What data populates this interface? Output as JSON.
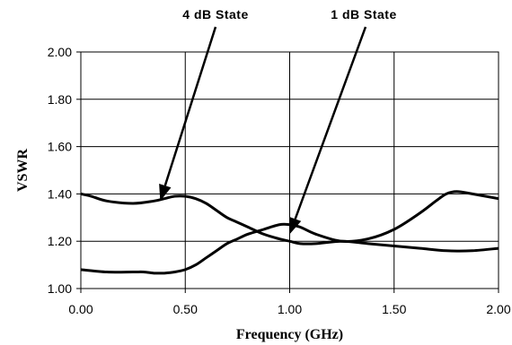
{
  "chart_data": {
    "type": "line",
    "title": "",
    "xlabel": "Frequency (GHz)",
    "ylabel": "VSWR",
    "xlim": [
      0,
      2
    ],
    "ylim": [
      1,
      2
    ],
    "x_ticks": [
      "0.00",
      "0.50",
      "1.00",
      "1.50",
      "2.00"
    ],
    "y_ticks": [
      "1.00",
      "1.20",
      "1.40",
      "1.60",
      "1.80",
      "2.00"
    ],
    "grid": true,
    "legend": "none",
    "line_color": "#000000",
    "series": [
      {
        "x": [
          0.0,
          0.05,
          0.125,
          0.25,
          0.35,
          0.4,
          0.45,
          0.5,
          0.55,
          0.6,
          0.65,
          0.7,
          0.75,
          0.8,
          0.875,
          0.95,
          1.0,
          1.05,
          1.125,
          1.25,
          1.375,
          1.5,
          1.625,
          1.75,
          1.875,
          2.0
        ],
        "y": [
          1.4,
          1.39,
          1.37,
          1.36,
          1.37,
          1.38,
          1.39,
          1.39,
          1.38,
          1.36,
          1.33,
          1.3,
          1.28,
          1.26,
          1.23,
          1.21,
          1.2,
          1.19,
          1.19,
          1.2,
          1.19,
          1.18,
          1.17,
          1.16,
          1.16,
          1.17
        ]
      },
      {
        "x": [
          0.0,
          0.125,
          0.25,
          0.3,
          0.35,
          0.375,
          0.4,
          0.45,
          0.5,
          0.55,
          0.6,
          0.65,
          0.7,
          0.75,
          0.8,
          0.875,
          0.95,
          1.0,
          1.05,
          1.125,
          1.25,
          1.375,
          1.5,
          1.625,
          1.7,
          1.75,
          1.8,
          1.875,
          2.0
        ],
        "y": [
          1.08,
          1.07,
          1.07,
          1.07,
          1.065,
          1.065,
          1.065,
          1.07,
          1.08,
          1.1,
          1.13,
          1.16,
          1.19,
          1.21,
          1.23,
          1.25,
          1.27,
          1.27,
          1.26,
          1.23,
          1.2,
          1.21,
          1.25,
          1.32,
          1.37,
          1.4,
          1.41,
          1.4,
          1.38
        ]
      }
    ],
    "annotations": [
      {
        "text": "4 dB State",
        "points_to_x": 0.38,
        "points_to_y": 1.37
      },
      {
        "text": "1 dB State",
        "points_to_x": 1.0,
        "points_to_y": 1.23
      }
    ]
  }
}
